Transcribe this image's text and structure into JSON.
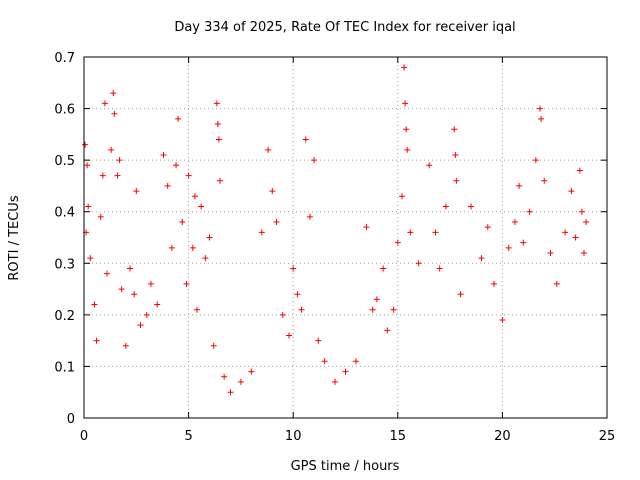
{
  "chart_data": {
    "type": "scatter",
    "title": "Day 334 of 2025, Rate Of TEC Index for receiver iqal",
    "xlabel": "GPS time / hours",
    "ylabel": "ROTI / TECUs",
    "xlim": [
      0,
      25
    ],
    "ylim": [
      0,
      0.7
    ],
    "x_ticks": [
      0,
      5,
      10,
      15,
      20,
      25
    ],
    "y_ticks": [
      0,
      0.1,
      0.2,
      0.3,
      0.4,
      0.5,
      0.6,
      0.7
    ],
    "grid": true,
    "marker": "plus",
    "color": "#ff0000",
    "series": [
      {
        "points": [
          [
            0.05,
            0.53
          ],
          [
            0.1,
            0.36
          ],
          [
            0.15,
            0.49
          ],
          [
            0.2,
            0.41
          ],
          [
            0.3,
            0.31
          ],
          [
            0.5,
            0.22
          ],
          [
            0.6,
            0.15
          ],
          [
            0.8,
            0.39
          ],
          [
            0.9,
            0.47
          ],
          [
            1.0,
            0.61
          ],
          [
            1.1,
            0.28
          ],
          [
            1.3,
            0.52
          ],
          [
            1.4,
            0.63
          ],
          [
            1.45,
            0.59
          ],
          [
            1.6,
            0.47
          ],
          [
            1.7,
            0.5
          ],
          [
            1.8,
            0.25
          ],
          [
            2.0,
            0.14
          ],
          [
            2.2,
            0.29
          ],
          [
            2.4,
            0.24
          ],
          [
            2.5,
            0.44
          ],
          [
            2.7,
            0.18
          ],
          [
            3.0,
            0.2
          ],
          [
            3.2,
            0.26
          ],
          [
            3.5,
            0.22
          ],
          [
            3.8,
            0.51
          ],
          [
            4.0,
            0.45
          ],
          [
            4.2,
            0.33
          ],
          [
            4.4,
            0.49
          ],
          [
            4.5,
            0.58
          ],
          [
            4.7,
            0.38
          ],
          [
            4.9,
            0.26
          ],
          [
            5.0,
            0.47
          ],
          [
            5.2,
            0.33
          ],
          [
            5.3,
            0.43
          ],
          [
            5.4,
            0.21
          ],
          [
            5.6,
            0.41
          ],
          [
            5.8,
            0.31
          ],
          [
            6.0,
            0.35
          ],
          [
            6.2,
            0.14
          ],
          [
            6.35,
            0.61
          ],
          [
            6.4,
            0.57
          ],
          [
            6.45,
            0.54
          ],
          [
            6.5,
            0.46
          ],
          [
            6.7,
            0.08
          ],
          [
            7.0,
            0.05
          ],
          [
            7.5,
            0.07
          ],
          [
            8.0,
            0.09
          ],
          [
            8.5,
            0.36
          ],
          [
            8.8,
            0.52
          ],
          [
            9.0,
            0.44
          ],
          [
            9.2,
            0.38
          ],
          [
            9.5,
            0.2
          ],
          [
            9.8,
            0.16
          ],
          [
            10.0,
            0.29
          ],
          [
            10.2,
            0.24
          ],
          [
            10.4,
            0.21
          ],
          [
            10.6,
            0.54
          ],
          [
            10.8,
            0.39
          ],
          [
            11.0,
            0.5
          ],
          [
            11.2,
            0.15
          ],
          [
            11.5,
            0.11
          ],
          [
            12.0,
            0.07
          ],
          [
            12.5,
            0.09
          ],
          [
            13.0,
            0.11
          ],
          [
            13.5,
            0.37
          ],
          [
            13.8,
            0.21
          ],
          [
            14.0,
            0.23
          ],
          [
            14.3,
            0.29
          ],
          [
            14.5,
            0.17
          ],
          [
            14.8,
            0.21
          ],
          [
            15.0,
            0.34
          ],
          [
            15.2,
            0.43
          ],
          [
            15.3,
            0.68
          ],
          [
            15.35,
            0.61
          ],
          [
            15.4,
            0.56
          ],
          [
            15.45,
            0.52
          ],
          [
            15.6,
            0.36
          ],
          [
            16.0,
            0.3
          ],
          [
            16.5,
            0.49
          ],
          [
            16.8,
            0.36
          ],
          [
            17.0,
            0.29
          ],
          [
            17.3,
            0.41
          ],
          [
            17.7,
            0.56
          ],
          [
            17.75,
            0.51
          ],
          [
            17.8,
            0.46
          ],
          [
            18.0,
            0.24
          ],
          [
            18.5,
            0.41
          ],
          [
            19.0,
            0.31
          ],
          [
            19.3,
            0.37
          ],
          [
            19.6,
            0.26
          ],
          [
            20.0,
            0.19
          ],
          [
            20.3,
            0.33
          ],
          [
            20.6,
            0.38
          ],
          [
            20.8,
            0.45
          ],
          [
            21.0,
            0.34
          ],
          [
            21.3,
            0.4
          ],
          [
            21.6,
            0.5
          ],
          [
            21.8,
            0.6
          ],
          [
            21.85,
            0.58
          ],
          [
            22.0,
            0.46
          ],
          [
            22.3,
            0.32
          ],
          [
            22.6,
            0.26
          ],
          [
            23.0,
            0.36
          ],
          [
            23.3,
            0.44
          ],
          [
            23.5,
            0.35
          ],
          [
            23.7,
            0.48
          ],
          [
            23.8,
            0.4
          ],
          [
            23.9,
            0.32
          ],
          [
            24.0,
            0.38
          ]
        ]
      }
    ]
  }
}
